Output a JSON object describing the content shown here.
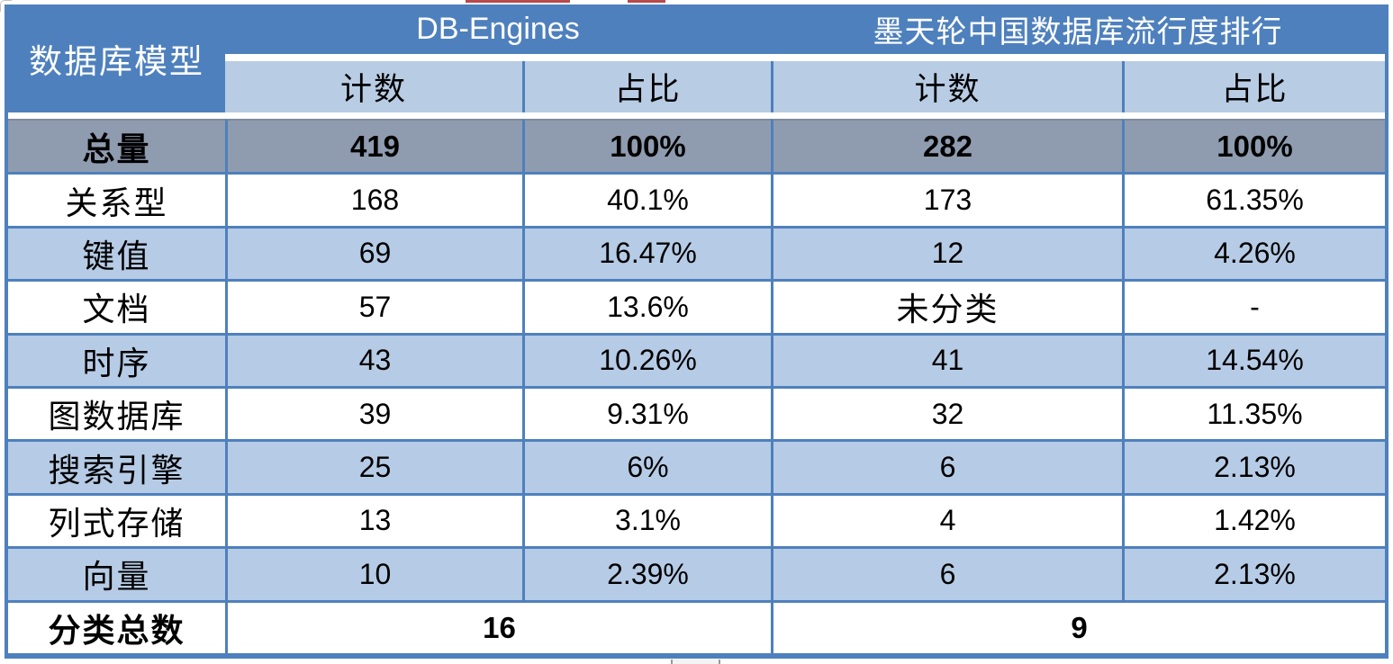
{
  "colors": {
    "header_blue": "#4E80BD",
    "subheader_blue": "#B8CCE4",
    "band_blue": "#B6CBE5",
    "total_row_gray": "#8F9CAF",
    "border_blue": "#4E80BD",
    "header_text": "#FFFFFF",
    "body_text": "#000000",
    "red_fragment": "#B8494D"
  },
  "chart_data": {
    "type": "table",
    "corner_header": "数据库模型",
    "column_groups": [
      {
        "label": "DB-Engines",
        "subcolumns": [
          "计数",
          "占比"
        ]
      },
      {
        "label": "墨天轮中国数据库流行度排行",
        "subcolumns": [
          "计数",
          "占比"
        ]
      }
    ],
    "rows": [
      {
        "label": "总量",
        "db_engines_count": "419",
        "db_engines_share": "100%",
        "modb_count": "282",
        "modb_share": "100%"
      },
      {
        "label": "关系型",
        "db_engines_count": "168",
        "db_engines_share": "40.1%",
        "modb_count": "173",
        "modb_share": "61.35%"
      },
      {
        "label": "键值",
        "db_engines_count": "69",
        "db_engines_share": "16.47%",
        "modb_count": "12",
        "modb_share": "4.26%"
      },
      {
        "label": "文档",
        "db_engines_count": "57",
        "db_engines_share": "13.6%",
        "modb_count": "未分类",
        "modb_share": "-"
      },
      {
        "label": "时序",
        "db_engines_count": "43",
        "db_engines_share": "10.26%",
        "modb_count": "41",
        "modb_share": "14.54%"
      },
      {
        "label": "图数据库",
        "db_engines_count": "39",
        "db_engines_share": "9.31%",
        "modb_count": "32",
        "modb_share": "11.35%"
      },
      {
        "label": "搜索引擎",
        "db_engines_count": "25",
        "db_engines_share": "6%",
        "modb_count": "6",
        "modb_share": "2.13%"
      },
      {
        "label": "列式存储",
        "db_engines_count": "13",
        "db_engines_share": "3.1%",
        "modb_count": "4",
        "modb_share": "1.42%"
      },
      {
        "label": "向量",
        "db_engines_count": "10",
        "db_engines_share": "2.39%",
        "modb_count": "6",
        "modb_share": "2.13%"
      }
    ],
    "footer_row": {
      "label": "分类总数",
      "db_engines_total": "16",
      "modb_total": "9"
    }
  }
}
